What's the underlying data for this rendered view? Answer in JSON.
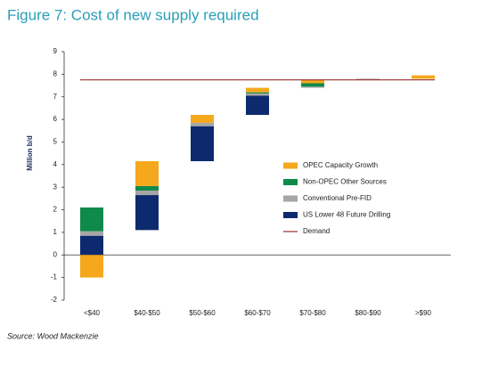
{
  "chart_data": {
    "type": "waterfall",
    "title": "Figure 7: Cost of new supply required",
    "y_label": "Million b/d",
    "source": "Source: Wood Mackenzie",
    "categories": [
      "<$40",
      "$40-$50",
      "$50-$60",
      "$60-$70",
      "$70-$80",
      "$80-$90",
      ">$90"
    ],
    "series": [
      {
        "name": "OPEC Capacity Growth",
        "color": "#f5a81c",
        "values": [
          -1.0,
          1.1,
          0.35,
          0.2,
          0.15,
          0,
          0.15
        ]
      },
      {
        "name": "Non-OPEC Other Sources",
        "color": "#0f8a4a",
        "values": [
          1.05,
          0.2,
          0,
          0.05,
          0.15,
          0,
          0
        ]
      },
      {
        "name": "Conventional Pre-FID",
        "color": "#a6a6a6",
        "values": [
          0.2,
          0.2,
          0.15,
          0.1,
          0.05,
          0.05,
          0
        ]
      },
      {
        "name": "US Lower 48 Future Drilling",
        "color": "#0d2a6e",
        "values": [
          0.85,
          1.55,
          1.55,
          0.85,
          0,
          0,
          0
        ]
      }
    ],
    "demand": {
      "name": "Demand",
      "color": "#9b2b2b",
      "value": 7.75
    },
    "ylim": [
      -2,
      9
    ],
    "yticks": [
      -2,
      -1,
      0,
      1,
      2,
      3,
      4,
      5,
      6,
      7,
      8,
      9
    ]
  }
}
